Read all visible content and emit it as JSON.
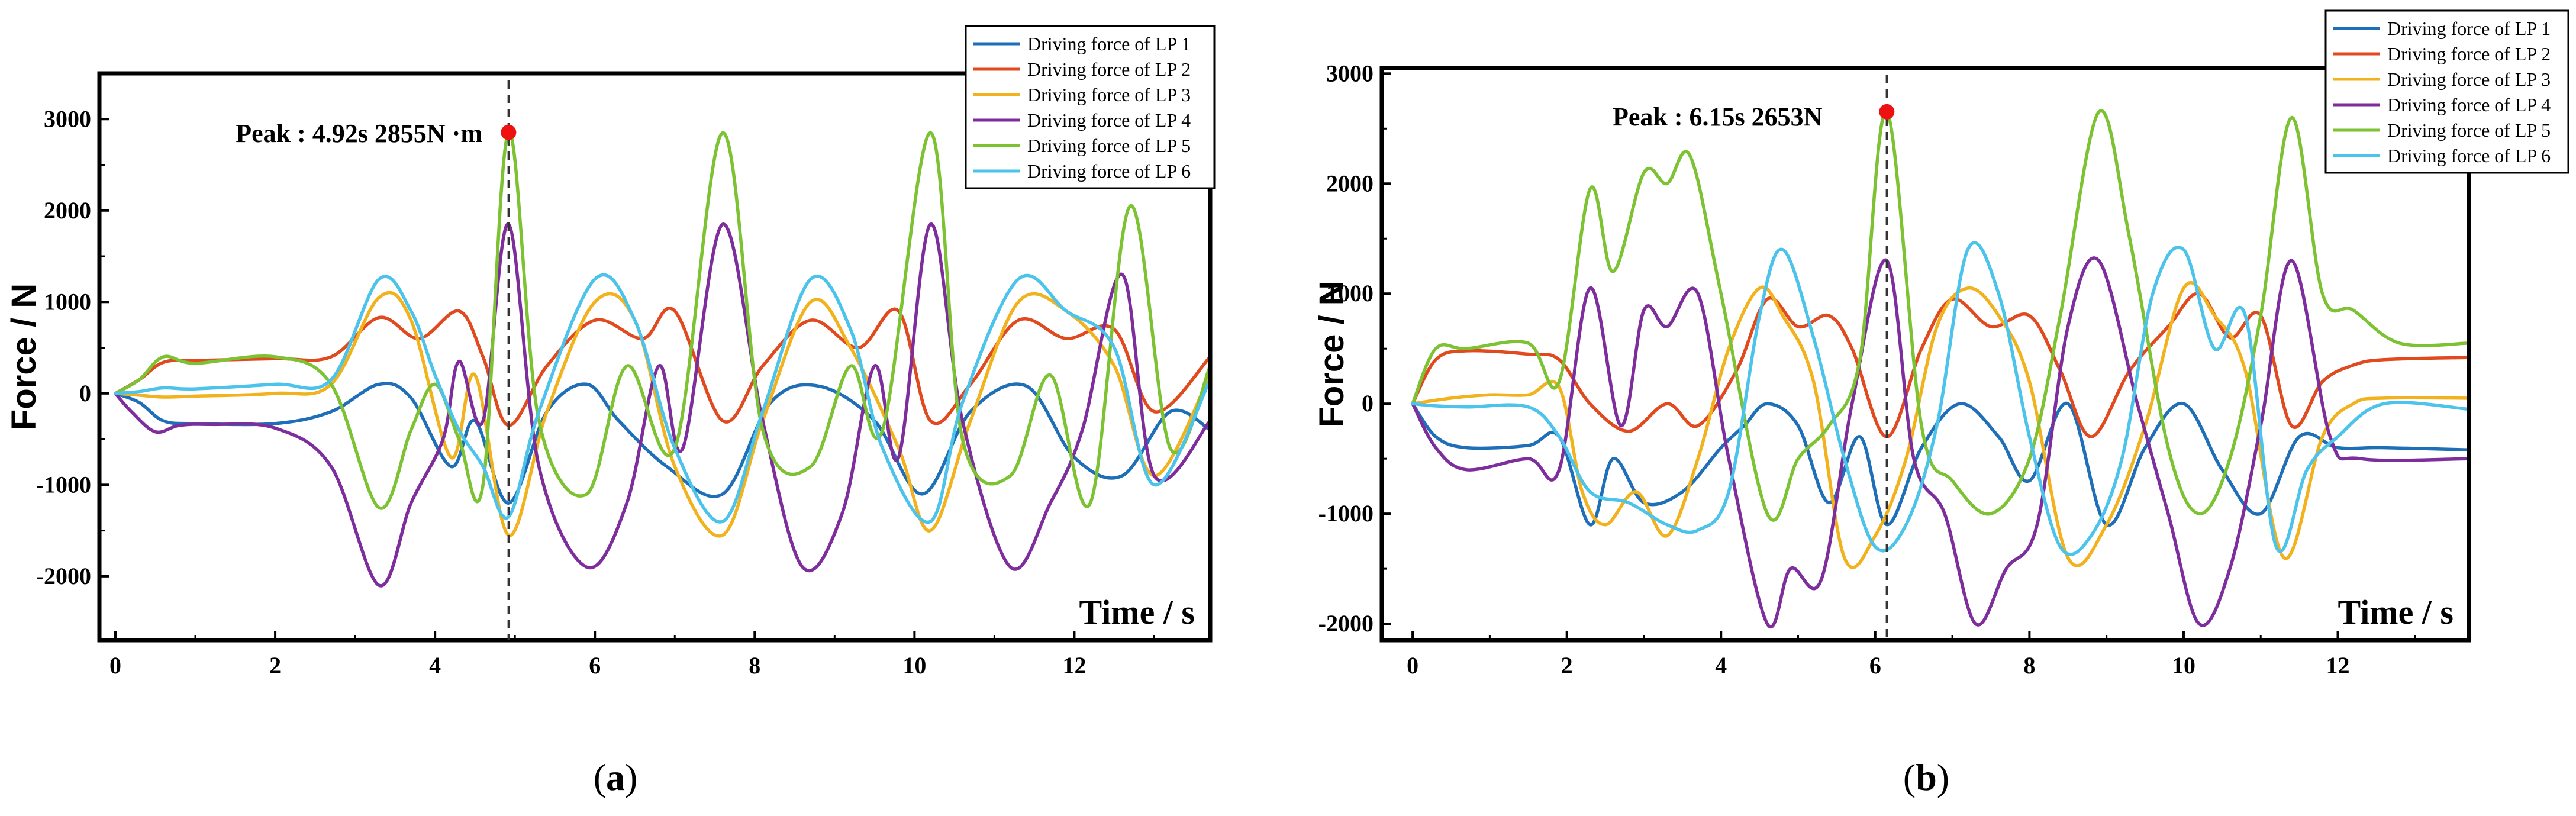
{
  "colors": {
    "lp1": "#1f6fb8",
    "lp2": "#e04a1e",
    "lp3": "#f2b21d",
    "lp4": "#7e2e9c",
    "lp5": "#7cc233",
    "lp6": "#4cc3ea",
    "peak": "#ee1111",
    "axis": "#000000"
  },
  "chart_data": [
    {
      "type": "line",
      "panel_label": "a",
      "ylabel": "Force / N",
      "xlabel": "Time / s",
      "xlim": [
        -0.2,
        13.7
      ],
      "ylim": [
        -2700,
        3500
      ],
      "xticks": [
        0,
        2,
        4,
        6,
        8,
        10,
        12
      ],
      "yticks": [
        -2000,
        -1000,
        0,
        1000,
        2000,
        3000
      ],
      "peak": {
        "x": 4.92,
        "y": 2855,
        "label": "Peak : 4.92s 2855N ·m"
      },
      "legend": [
        "Driving force of  LP 1",
        "Driving force of  LP 2",
        "Driving force of  LP 3",
        "Driving force of  LP 4",
        "Driving force of  LP 5",
        "Driving force of  LP 6"
      ],
      "series": [
        {
          "name": "Driving force of  LP 1",
          "x": [
            0,
            0.3,
            0.6,
            1,
            2,
            2.7,
            3.3,
            3.7,
            4.2,
            4.5,
            4.92,
            5.4,
            5.9,
            6.3,
            6.9,
            7.6,
            8.2,
            8.8,
            9.5,
            10.1,
            10.7,
            11.4,
            12.0,
            12.6,
            13.2,
            13.7
          ],
          "values": [
            0,
            -100,
            -300,
            -330,
            -330,
            -200,
            100,
            -50,
            -800,
            -300,
            -1200,
            -200,
            100,
            -300,
            -800,
            -1100,
            -100,
            80,
            -300,
            -1100,
            -200,
            80,
            -700,
            -900,
            -200,
            -400
          ]
        },
        {
          "name": "Driving force of  LP 2",
          "x": [
            0,
            0.3,
            0.6,
            1,
            2,
            2.7,
            3.3,
            3.8,
            4.3,
            4.6,
            4.92,
            5.4,
            6.0,
            6.6,
            7.0,
            7.6,
            8.1,
            8.7,
            9.3,
            9.8,
            10.2,
            10.7,
            11.3,
            11.9,
            12.5,
            13.0,
            13.7
          ],
          "values": [
            0,
            150,
            340,
            360,
            380,
            400,
            830,
            600,
            900,
            400,
            -350,
            300,
            800,
            600,
            900,
            -300,
            300,
            800,
            500,
            900,
            -300,
            100,
            800,
            600,
            700,
            -200,
            400
          ]
        },
        {
          "name": "Driving force of  LP 3",
          "x": [
            0,
            0.3,
            0.6,
            1,
            2,
            2.7,
            3.3,
            3.7,
            4.2,
            4.5,
            4.92,
            5.4,
            6.0,
            6.5,
            7.0,
            7.6,
            8.1,
            8.7,
            9.2,
            9.8,
            10.2,
            10.7,
            11.3,
            11.9,
            12.5,
            13.0,
            13.7
          ],
          "values": [
            0,
            -20,
            -40,
            -30,
            0,
            100,
            1050,
            800,
            -700,
            200,
            -1550,
            -200,
            1000,
            800,
            -800,
            -1550,
            -300,
            1000,
            500,
            -600,
            -1500,
            -300,
            1000,
            900,
            300,
            -900,
            200
          ]
        },
        {
          "name": "Driving force of  LP 4",
          "x": [
            0,
            0.2,
            0.5,
            0.8,
            1.2,
            2,
            2.7,
            3.3,
            3.7,
            4.1,
            4.3,
            4.6,
            4.92,
            5.3,
            5.9,
            6.4,
            6.8,
            7.1,
            7.6,
            8.1,
            8.6,
            9.1,
            9.5,
            9.8,
            10.2,
            10.6,
            11.2,
            11.7,
            12.1,
            12.6,
            13.0,
            13.7
          ],
          "values": [
            0,
            -200,
            -420,
            -350,
            -340,
            -380,
            -800,
            -2100,
            -1200,
            -500,
            350,
            -300,
            1850,
            -800,
            -1900,
            -1200,
            300,
            -600,
            1850,
            -300,
            -1900,
            -1300,
            300,
            -700,
            1850,
            -300,
            -1900,
            -1200,
            -400,
            1300,
            -900,
            -300
          ]
        },
        {
          "name": "Driving force of  LP 5",
          "x": [
            0,
            0.3,
            0.6,
            1,
            2,
            2.7,
            3.3,
            3.7,
            4.0,
            4.3,
            4.6,
            4.92,
            5.3,
            5.9,
            6.4,
            7.0,
            7.6,
            8.1,
            8.7,
            9.2,
            9.6,
            10.2,
            10.6,
            11.2,
            11.7,
            12.2,
            12.7,
            13.2,
            13.7
          ],
          "values": [
            0,
            150,
            400,
            330,
            400,
            100,
            -1250,
            -400,
            100,
            -500,
            -1000,
            2855,
            -300,
            -1100,
            300,
            -600,
            2850,
            -400,
            -800,
            300,
            -400,
            2850,
            -500,
            -900,
            200,
            -1200,
            2050,
            -600,
            300
          ]
        },
        {
          "name": "Driving force of  LP 6",
          "x": [
            0,
            0.3,
            0.6,
            1,
            2,
            2.7,
            3.3,
            3.7,
            4.0,
            4.3,
            4.6,
            4.92,
            5.3,
            6.0,
            6.5,
            7.0,
            7.6,
            8.1,
            8.7,
            9.2,
            9.6,
            10.2,
            10.6,
            11.3,
            11.9,
            12.5,
            13.0,
            13.7
          ],
          "values": [
            0,
            20,
            60,
            50,
            100,
            150,
            1250,
            900,
            200,
            -400,
            -800,
            -1350,
            -200,
            1250,
            800,
            -600,
            -1400,
            -200,
            1250,
            700,
            -600,
            -1400,
            -100,
            1250,
            900,
            500,
            -1000,
            150
          ]
        }
      ]
    },
    {
      "type": "line",
      "panel_label": "b",
      "ylabel": "Force / N",
      "xlabel": "Time / s",
      "xlim": [
        -0.4,
        13.7
      ],
      "ylim": [
        -2150,
        3050
      ],
      "xticks": [
        0,
        2,
        4,
        6,
        8,
        10,
        12
      ],
      "yticks": [
        -2000,
        -1000,
        0,
        1000,
        2000,
        3000
      ],
      "peak": {
        "x": 6.15,
        "y": 2653,
        "label": "Peak : 6.15s 2653N"
      },
      "legend": [
        "Driving force of  LP 1",
        "Driving force of  LP 2",
        "Driving force of  LP 3",
        "Driving force of  LP 4",
        "Driving force of  LP 5",
        "Driving force of  LP 6"
      ],
      "series": [
        {
          "name": "Driving force of  LP 1",
          "x": [
            0,
            0.3,
            0.7,
            1.5,
            1.9,
            2.3,
            2.6,
            3.0,
            3.5,
            4.0,
            4.3,
            4.6,
            5.0,
            5.4,
            5.8,
            6.15,
            6.6,
            7.1,
            7.6,
            8.0,
            8.5,
            9.0,
            9.5,
            10.0,
            10.5,
            11.0,
            11.5,
            12.0,
            12.6,
            13.7
          ],
          "values": [
            0,
            -300,
            -400,
            -380,
            -300,
            -1100,
            -500,
            -900,
            -800,
            -400,
            -200,
            0,
            -200,
            -900,
            -300,
            -1100,
            -400,
            0,
            -300,
            -700,
            0,
            -1100,
            -400,
            0,
            -600,
            -1000,
            -300,
            -400,
            -400,
            -420
          ]
        },
        {
          "name": "Driving force of  LP 2",
          "x": [
            0,
            0.3,
            0.7,
            1.5,
            1.9,
            2.3,
            2.8,
            3.3,
            3.7,
            4.2,
            4.6,
            5.0,
            5.4,
            5.7,
            6.15,
            6.6,
            7.0,
            7.5,
            8.0,
            8.4,
            8.8,
            9.3,
            9.8,
            10.2,
            10.6,
            11.0,
            11.4,
            11.8,
            12.2,
            12.6,
            13.7
          ],
          "values": [
            0,
            400,
            480,
            450,
            400,
            0,
            -250,
            0,
            -200,
            300,
            950,
            700,
            800,
            500,
            -300,
            500,
            950,
            700,
            800,
            300,
            -300,
            300,
            700,
            1000,
            600,
            800,
            -200,
            200,
            350,
            400,
            420
          ]
        },
        {
          "name": "Driving force of  LP 3",
          "x": [
            0,
            0.5,
            1.0,
            1.5,
            1.9,
            2.2,
            2.5,
            2.9,
            3.3,
            3.7,
            4.1,
            4.5,
            4.8,
            5.2,
            5.6,
            6.0,
            6.4,
            6.8,
            7.2,
            7.6,
            8.0,
            8.5,
            9.0,
            9.5,
            10.0,
            10.4,
            10.8,
            11.3,
            11.8,
            12.2,
            12.6,
            13.7
          ],
          "values": [
            0,
            50,
            80,
            80,
            150,
            -800,
            -1100,
            -800,
            -1200,
            -500,
            500,
            1050,
            800,
            200,
            -1400,
            -1200,
            -500,
            700,
            1050,
            800,
            200,
            -1400,
            -1100,
            -200,
            1050,
            800,
            300,
            -1400,
            -300,
            0,
            50,
            50
          ]
        },
        {
          "name": "Driving force of  LP 4",
          "x": [
            0,
            0.3,
            0.7,
            1.5,
            1.9,
            2.3,
            2.7,
            3.0,
            3.3,
            3.7,
            4.1,
            4.6,
            4.9,
            5.3,
            5.7,
            6.15,
            6.5,
            6.9,
            7.3,
            7.7,
            8.1,
            8.5,
            8.9,
            9.4,
            9.8,
            10.2,
            10.6,
            11.0,
            11.4,
            11.9,
            12.3,
            13.7
          ],
          "values": [
            0,
            -400,
            -600,
            -500,
            -600,
            1050,
            -200,
            850,
            700,
            1000,
            -500,
            -2000,
            -1500,
            -1600,
            0,
            1300,
            -500,
            -1000,
            -2000,
            -1500,
            -1100,
            700,
            1300,
            0,
            -1000,
            -2000,
            -1500,
            -200,
            1300,
            -300,
            -500,
            -500
          ]
        },
        {
          "name": "Driving force of  LP 5",
          "x": [
            0,
            0.3,
            0.7,
            1.5,
            1.9,
            2.3,
            2.6,
            3.0,
            3.3,
            3.6,
            4.0,
            4.6,
            5.0,
            5.4,
            5.8,
            6.15,
            6.6,
            7.0,
            7.5,
            8.0,
            8.4,
            8.9,
            9.3,
            9.8,
            10.2,
            10.6,
            11.0,
            11.4,
            11.8,
            12.2,
            12.8,
            13.7
          ],
          "values": [
            0,
            500,
            500,
            550,
            200,
            1950,
            1200,
            2100,
            2000,
            2250,
            1000,
            -1000,
            -500,
            -200,
            400,
            2653,
            -200,
            -700,
            -1000,
            -500,
            800,
            2650,
            1500,
            -400,
            -1000,
            -500,
            800,
            2600,
            1000,
            850,
            550,
            550
          ]
        },
        {
          "name": "Driving force of  LP 6",
          "x": [
            0,
            0.3,
            0.7,
            1.5,
            1.9,
            2.3,
            2.8,
            3.3,
            3.7,
            4.1,
            4.5,
            4.8,
            5.2,
            5.6,
            6.0,
            6.4,
            6.8,
            7.2,
            7.6,
            8.0,
            8.4,
            8.8,
            9.2,
            9.6,
            10.0,
            10.4,
            10.8,
            11.2,
            11.6,
            12.0,
            12.6,
            13.7
          ],
          "values": [
            0,
            -20,
            -30,
            -30,
            -300,
            -800,
            -900,
            -1100,
            -1150,
            -800,
            800,
            1400,
            600,
            -500,
            -1300,
            -1100,
            -200,
            1400,
            1000,
            -300,
            -1300,
            -1200,
            -500,
            1000,
            1400,
            500,
            800,
            -1300,
            -600,
            -300,
            0,
            -50
          ]
        }
      ]
    }
  ]
}
